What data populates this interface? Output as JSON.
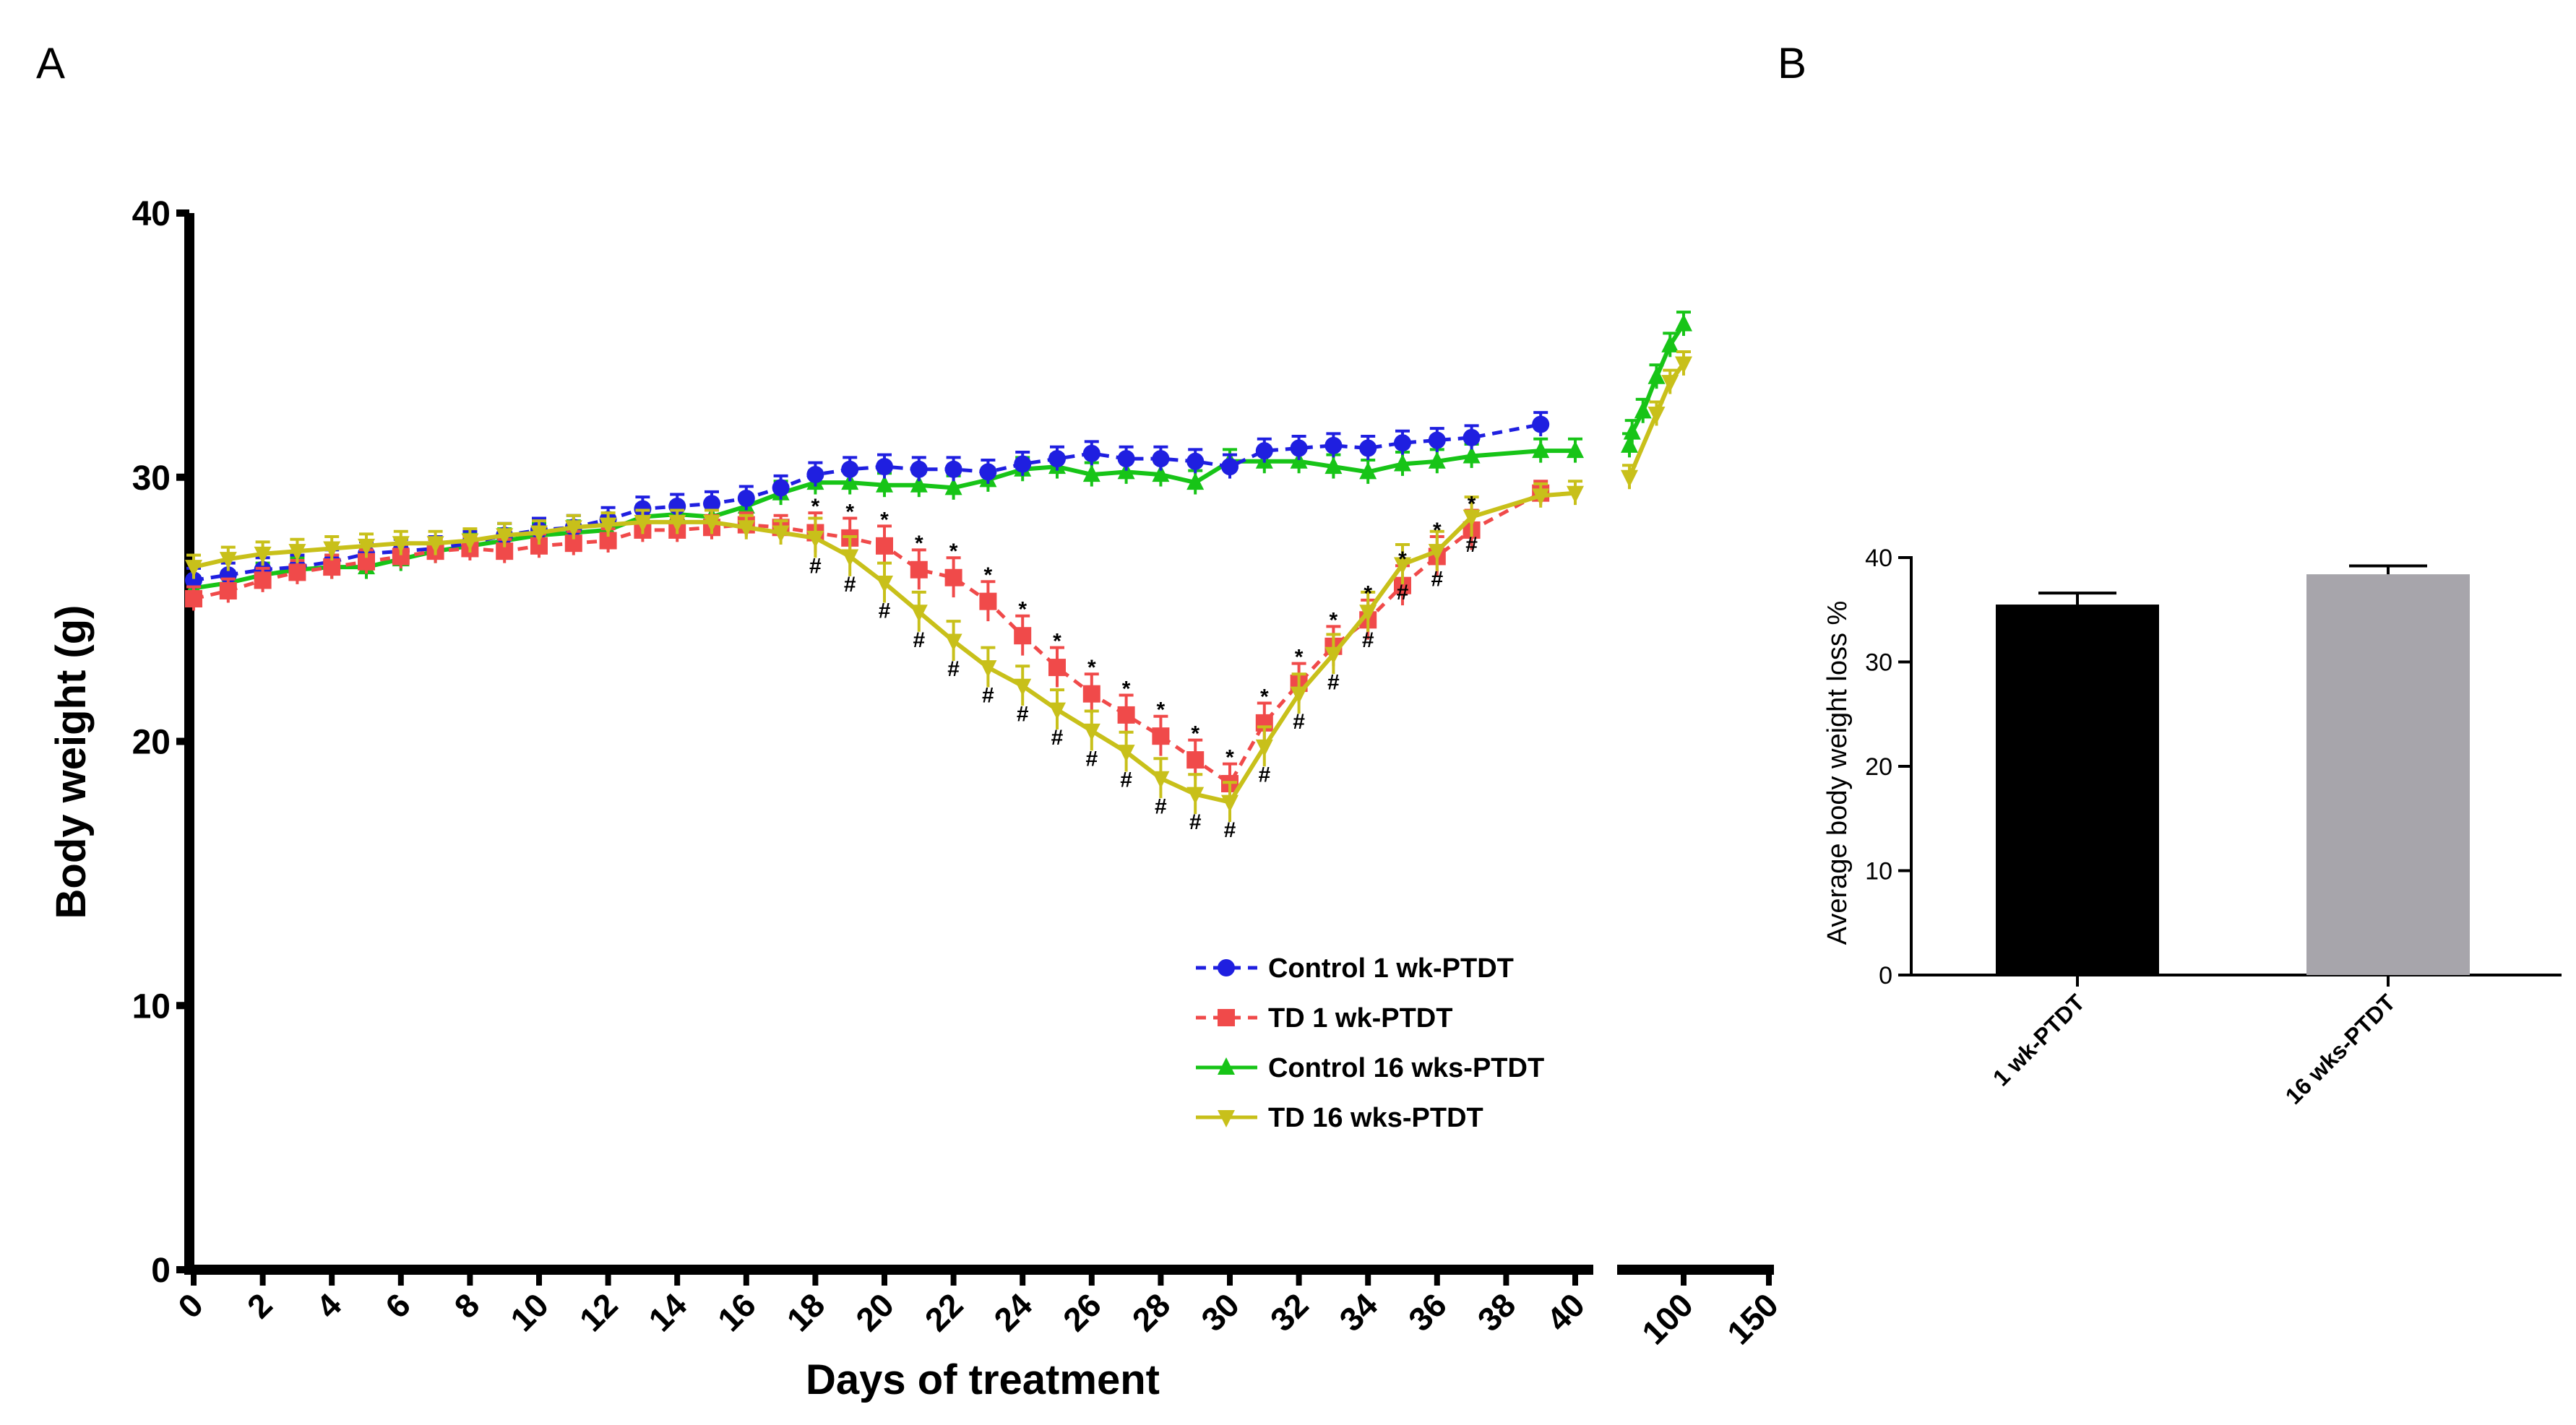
{
  "panels": {
    "a_label": "A",
    "b_label": "B"
  },
  "colors": {
    "control_1wk": "#1f1fe0",
    "td_1wk": "#f04a4a",
    "control_16wk": "#17c417",
    "td_16wk": "#c8c01a",
    "bar_1wk": "#000000",
    "bar_16wk": "#a7a5ab"
  },
  "chart_data": [
    {
      "type": "line",
      "panel": "A",
      "xlabel": "Days of treatment",
      "ylabel": "Body weight (g)",
      "ylim": [
        0,
        40
      ],
      "yticks": [
        0,
        10,
        20,
        30,
        40
      ],
      "xticks": [
        "0",
        "2",
        "4",
        "6",
        "8",
        "10",
        "12",
        "14",
        "16",
        "18",
        "20",
        "22",
        "24",
        "26",
        "28",
        "30",
        "32",
        "34",
        "36",
        "38",
        "40",
        "100",
        "150"
      ],
      "xbreak": "between 40 and ~60 days",
      "xlim_segment1": [
        0,
        40
      ],
      "xlim_segment2": [
        60,
        150
      ],
      "legend_position": "lower-right",
      "significance_markers": [
        "*",
        "#"
      ],
      "series": [
        {
          "name": "Control 1 wk-PTDT",
          "key": "control_1wk",
          "style": "dashed",
          "marker": "circle",
          "x": [
            0,
            1,
            2,
            3,
            4,
            5,
            6,
            7,
            8,
            9,
            10,
            11,
            12,
            13,
            14,
            15,
            16,
            17,
            18,
            19,
            20,
            21,
            22,
            23,
            24,
            25,
            26,
            27,
            28,
            29,
            30,
            31,
            32,
            33,
            34,
            35,
            36,
            37,
            39
          ],
          "y": [
            26.1,
            26.3,
            26.5,
            26.6,
            26.8,
            27.1,
            27.2,
            27.3,
            27.5,
            27.8,
            28.0,
            28.1,
            28.4,
            28.8,
            28.9,
            29.0,
            29.2,
            29.6,
            30.1,
            30.3,
            30.4,
            30.3,
            30.3,
            30.2,
            30.5,
            30.7,
            30.9,
            30.7,
            30.7,
            30.6,
            30.4,
            31.0,
            31.1,
            31.2,
            31.1,
            31.3,
            31.4,
            31.5,
            32.0
          ]
        },
        {
          "name": "TD 1 wk-PTDT",
          "key": "td_1wk",
          "style": "dashed",
          "marker": "square",
          "x": [
            0,
            1,
            2,
            3,
            4,
            5,
            6,
            7,
            8,
            9,
            10,
            11,
            12,
            13,
            14,
            15,
            16,
            17,
            18,
            19,
            20,
            21,
            22,
            23,
            24,
            25,
            26,
            27,
            28,
            29,
            30,
            31,
            32,
            33,
            34,
            35,
            36,
            37,
            39
          ],
          "y": [
            25.4,
            25.7,
            26.1,
            26.4,
            26.6,
            26.8,
            27.0,
            27.2,
            27.3,
            27.2,
            27.4,
            27.5,
            27.6,
            28.0,
            28.0,
            28.1,
            28.2,
            28.1,
            27.9,
            27.7,
            27.4,
            26.5,
            26.2,
            25.3,
            24.0,
            22.8,
            21.8,
            21.0,
            20.2,
            19.3,
            18.4,
            20.7,
            22.2,
            23.6,
            24.6,
            25.9,
            27.0,
            28.0,
            29.4
          ]
        },
        {
          "name": "Control 16 wks-PTDT",
          "key": "control_16wk",
          "style": "solid",
          "marker": "triangle-up",
          "x": [
            0,
            1,
            2,
            3,
            4,
            5,
            6,
            7,
            8,
            9,
            10,
            11,
            12,
            13,
            14,
            15,
            16,
            17,
            18,
            19,
            20,
            21,
            22,
            23,
            24,
            25,
            26,
            27,
            28,
            29,
            30,
            31,
            32,
            33,
            34,
            35,
            36,
            37,
            39,
            40,
            60,
            62,
            70,
            80,
            90,
            100
          ],
          "y": [
            25.8,
            26.0,
            26.3,
            26.5,
            26.6,
            26.6,
            26.9,
            27.2,
            27.4,
            27.6,
            27.8,
            27.9,
            28.0,
            28.5,
            28.6,
            28.5,
            28.9,
            29.4,
            29.8,
            29.8,
            29.7,
            29.7,
            29.6,
            29.9,
            30.3,
            30.4,
            30.1,
            30.2,
            30.1,
            29.8,
            30.6,
            30.6,
            30.6,
            30.4,
            30.2,
            30.5,
            30.6,
            30.8,
            31.0,
            31.0,
            31.2,
            31.7,
            32.5,
            33.8,
            35.0,
            35.8
          ]
        },
        {
          "name": "TD 16 wks-PTDT",
          "key": "td_16wk",
          "style": "solid",
          "marker": "triangle-down",
          "x": [
            0,
            1,
            2,
            3,
            4,
            5,
            6,
            7,
            8,
            9,
            10,
            11,
            12,
            13,
            14,
            15,
            16,
            17,
            18,
            19,
            20,
            21,
            22,
            23,
            24,
            25,
            26,
            27,
            28,
            29,
            30,
            31,
            32,
            33,
            34,
            35,
            36,
            37,
            39,
            40,
            60,
            80,
            90,
            100
          ],
          "y": [
            26.6,
            26.9,
            27.1,
            27.2,
            27.3,
            27.4,
            27.5,
            27.5,
            27.6,
            27.8,
            27.9,
            28.1,
            28.2,
            28.3,
            28.3,
            28.3,
            28.1,
            27.9,
            27.7,
            27.0,
            26.0,
            24.9,
            23.8,
            22.8,
            22.1,
            21.2,
            20.4,
            19.6,
            18.6,
            18.0,
            17.7,
            19.8,
            21.8,
            23.3,
            24.9,
            26.7,
            27.2,
            28.5,
            29.3,
            29.4,
            30.0,
            32.4,
            33.6,
            34.3
          ]
        }
      ]
    },
    {
      "type": "bar",
      "panel": "B",
      "ylabel": "Average body weight loss %",
      "ylim": [
        0,
        40
      ],
      "yticks": [
        0,
        10,
        20,
        30,
        40
      ],
      "categories": [
        "1 wk-PTDT",
        "16 wks-PTDT"
      ],
      "values": [
        35.5,
        38.4
      ],
      "errors": [
        1.1,
        0.8
      ]
    }
  ]
}
